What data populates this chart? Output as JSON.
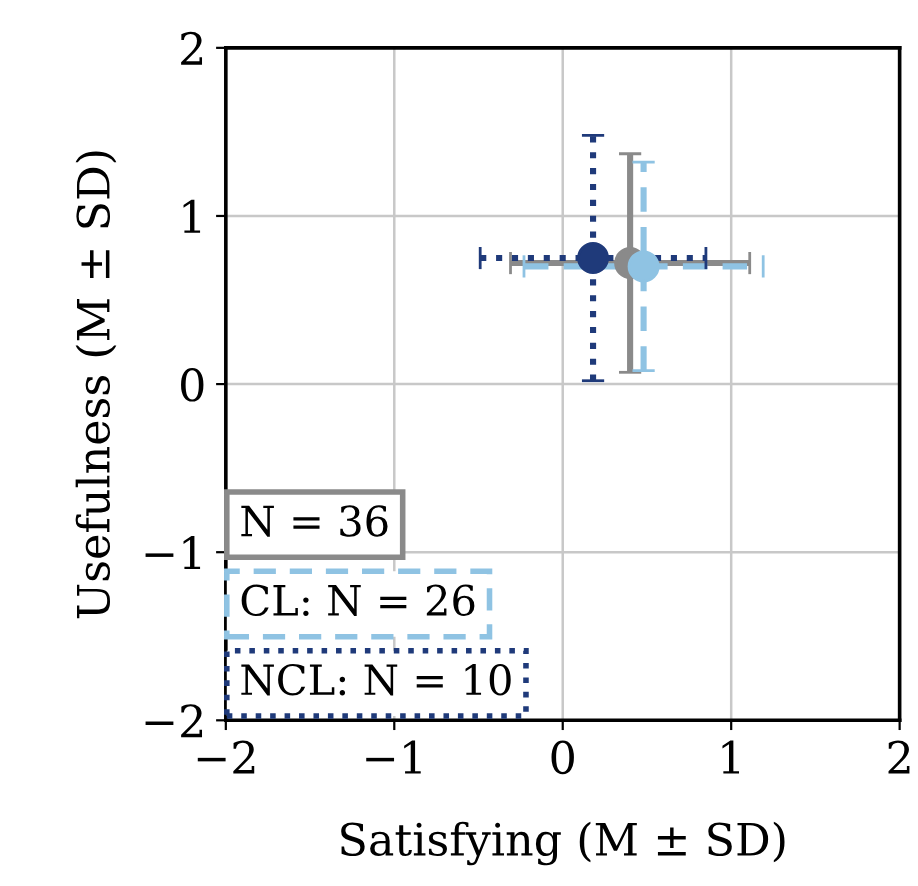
{
  "chart_data": {
    "type": "scatter",
    "xlabel": "Satisfying (M ± SD)",
    "ylabel": "Usefulness (M ± SD)",
    "xlim": [
      -2,
      2
    ],
    "ylim": [
      -2,
      2
    ],
    "xticks": [
      {
        "value": -2,
        "label": "−2"
      },
      {
        "value": -1,
        "label": "−1"
      },
      0,
      1,
      2
    ],
    "yticks": [
      {
        "value": -2,
        "label": "−2"
      },
      {
        "value": -1,
        "label": "−1"
      },
      0,
      1,
      2
    ],
    "grid": true,
    "legend": "bottom left",
    "marker": "circle",
    "series": [
      {
        "name": "N = 36",
        "color": "#8a8a8a",
        "line_style": "solid",
        "x": [
          0.4
        ],
        "values": [
          0.72
        ],
        "xerrors": [
          0.71
        ],
        "errors": [
          0.65
        ]
      },
      {
        "name": "CL: N = 26",
        "color": "#8fc3e3",
        "line_style": "dashed",
        "x": [
          0.48
        ],
        "values": [
          0.7
        ],
        "xerrors": [
          0.71
        ],
        "errors": [
          0.62
        ]
      },
      {
        "name": "NCL: N = 10",
        "color": "#1f3a7a",
        "line_style": "dotted",
        "x": [
          0.18
        ],
        "values": [
          0.75
        ],
        "xerrors": [
          0.67
        ],
        "errors": [
          0.73
        ]
      }
    ]
  }
}
